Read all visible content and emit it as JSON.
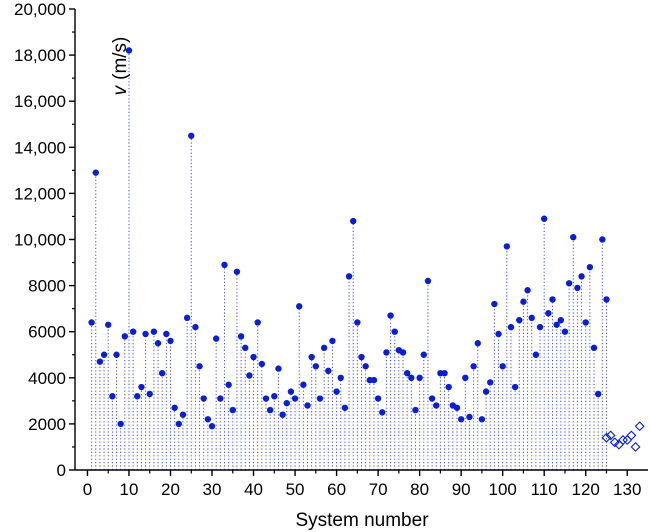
{
  "chart_data": {
    "type": "scatter",
    "title": "",
    "xlabel": "System number",
    "ylabel_var": "v",
    "ylabel_unit": "(m/s)",
    "xlim": [
      -3,
      135
    ],
    "ylim": [
      0,
      20000
    ],
    "x_ticks": [
      0,
      10,
      20,
      30,
      40,
      50,
      60,
      70,
      80,
      90,
      100,
      110,
      120,
      130
    ],
    "x_tick_labels": [
      "0",
      "10",
      "20",
      "30",
      "40",
      "50",
      "60",
      "70",
      "80",
      "90",
      "100",
      "110",
      "120",
      "130"
    ],
    "y_ticks": [
      0,
      2000,
      4000,
      6000,
      8000,
      10000,
      12000,
      14000,
      16000,
      18000,
      20000
    ],
    "y_tick_labels": [
      "0",
      "2000",
      "4000",
      "6000",
      "8000",
      "10,000",
      "12,000",
      "14,000",
      "16,000",
      "18,000",
      "20,000"
    ],
    "grid": false,
    "legend": "none",
    "colors": {
      "points": "#0a1fd1",
      "stems": "#3c4ad6",
      "axis": "#000000"
    },
    "series": [
      {
        "marker": "filled-circle",
        "x": [
          1,
          2,
          3,
          4,
          5,
          6,
          7,
          8,
          9,
          10,
          11,
          12,
          13,
          14,
          15,
          16,
          17,
          18,
          19,
          20,
          21,
          22,
          23,
          24,
          25,
          26,
          27,
          28,
          29,
          30,
          31,
          32,
          33,
          34,
          35,
          36,
          37,
          38,
          39,
          40,
          41,
          42,
          43,
          44,
          45,
          46,
          47,
          48,
          49,
          50,
          51,
          52,
          53,
          54,
          55,
          56,
          57,
          58,
          59,
          60,
          61,
          62,
          63,
          64,
          65,
          66,
          67,
          68,
          69,
          70,
          71,
          72,
          73,
          74,
          75,
          76,
          77,
          78,
          79,
          80,
          81,
          82,
          83,
          84,
          85,
          86,
          87,
          88,
          89,
          90,
          91,
          92,
          93,
          94,
          95,
          96,
          97,
          98,
          99,
          100,
          101,
          102,
          103,
          104,
          105,
          106,
          107,
          108,
          109,
          110,
          111,
          112,
          113,
          114,
          115,
          116,
          117,
          118,
          119,
          120,
          121,
          122,
          123,
          124,
          125
        ],
        "y": [
          6400,
          12900,
          4700,
          5000,
          6300,
          3200,
          5000,
          2000,
          5800,
          18200,
          6000,
          3200,
          3600,
          5900,
          3300,
          6000,
          5500,
          4200,
          5900,
          5600,
          2700,
          2000,
          2400,
          6600,
          14500,
          6200,
          4500,
          3100,
          2200,
          1900,
          5700,
          3100,
          8900,
          3700,
          2600,
          8600,
          5800,
          5300,
          4100,
          4900,
          6400,
          4600,
          3100,
          2600,
          3200,
          4400,
          2400,
          2900,
          3400,
          3100,
          7100,
          3700,
          2800,
          4900,
          4500,
          3100,
          5300,
          4300,
          5600,
          3400,
          4000,
          2700,
          8400,
          10800,
          6400,
          4900,
          4500,
          3900,
          3900,
          3100,
          2500,
          5100,
          6700,
          6000,
          5200,
          5100,
          4200,
          4000,
          2600,
          4000,
          5000,
          8200,
          3100,
          2800,
          4200,
          4200,
          3600,
          2800,
          2700,
          2200,
          4000,
          2300,
          4500,
          5500,
          2200,
          3400,
          3800,
          7200,
          5900,
          4500,
          9700,
          6200,
          3600,
          6500,
          7300,
          7800,
          6600,
          5000,
          6200,
          10900,
          6800,
          7400,
          6300,
          6500,
          6000,
          8100,
          10100,
          7900,
          8400,
          6400,
          8800,
          5300,
          3300,
          10000,
          7400
        ]
      },
      {
        "marker": "open-diamond",
        "x": [
          125,
          126,
          127,
          128,
          129,
          130,
          131,
          132,
          133
        ],
        "y": [
          1400,
          1500,
          1200,
          1100,
          1300,
          1300,
          1500,
          1000,
          1900
        ]
      }
    ]
  }
}
